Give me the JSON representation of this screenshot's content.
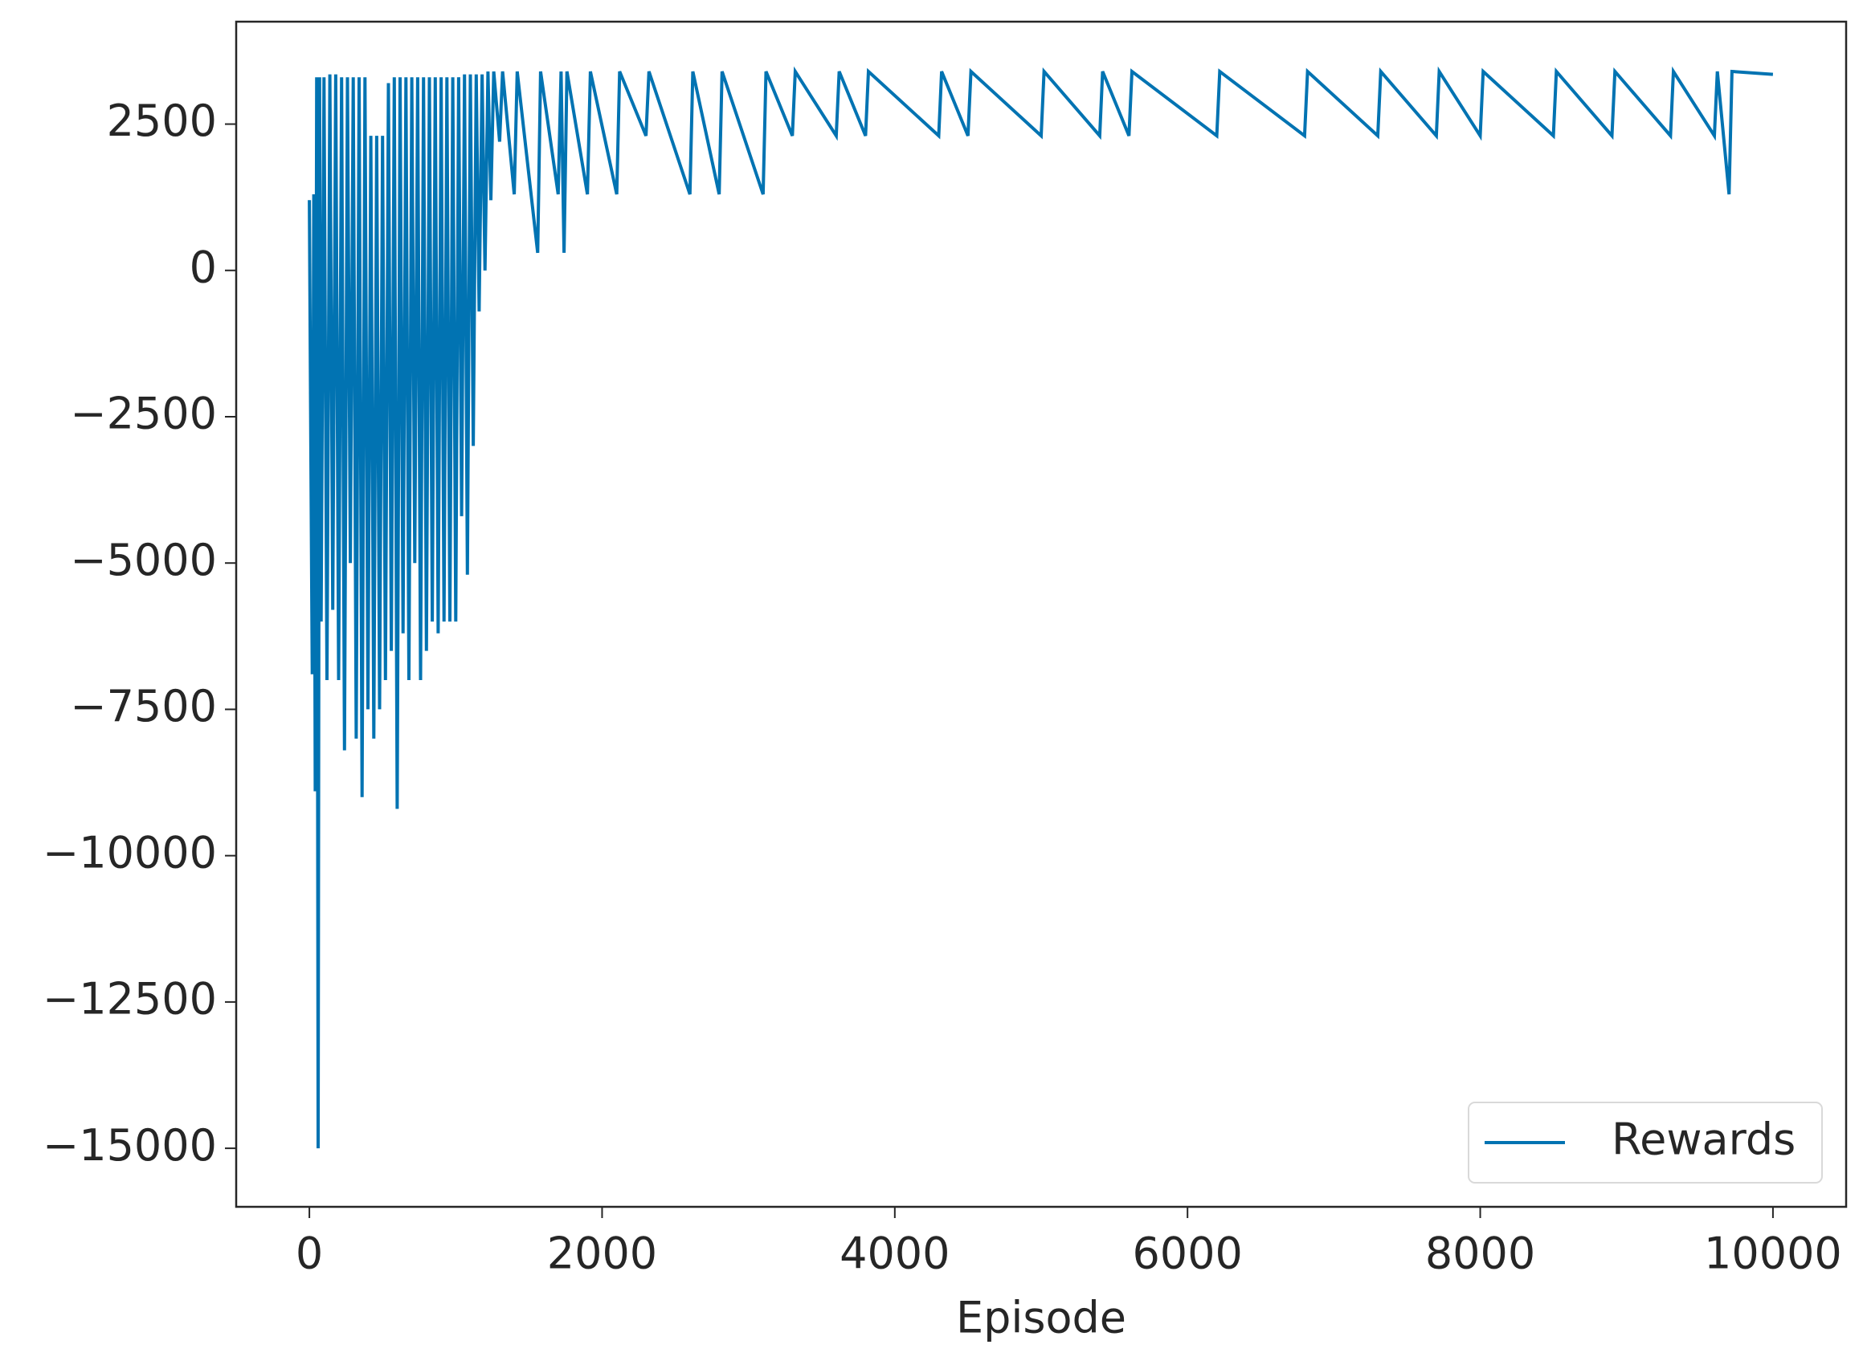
{
  "chart_data": {
    "type": "line",
    "xlabel": "Episode",
    "x": [
      0,
      10,
      20,
      30,
      40,
      50,
      60,
      70,
      80,
      100,
      120,
      140,
      160,
      180,
      200,
      220,
      240,
      260,
      280,
      300,
      320,
      340,
      360,
      380,
      400,
      420,
      440,
      460,
      480,
      500,
      520,
      540,
      560,
      580,
      600,
      620,
      640,
      660,
      680,
      700,
      720,
      740,
      760,
      780,
      800,
      820,
      840,
      860,
      880,
      900,
      920,
      940,
      960,
      980,
      1000,
      1020,
      1040,
      1060,
      1080,
      1100,
      1120,
      1140,
      1160,
      1180,
      1200,
      1220,
      1240,
      1260,
      1300,
      1320,
      1400,
      1420,
      1560,
      1580,
      1700,
      1720,
      1740,
      1760,
      1900,
      1920,
      2100,
      2120,
      2300,
      2320,
      2600,
      2620,
      2800,
      2820,
      3100,
      3120,
      3300,
      3320,
      3600,
      3620,
      3800,
      3820,
      4300,
      4320,
      4500,
      4520,
      5000,
      5020,
      5400,
      5420,
      5600,
      5620,
      6200,
      6220,
      6800,
      6820,
      7300,
      7320,
      7700,
      7720,
      8000,
      8020,
      8500,
      8520,
      8900,
      8920,
      9300,
      9320,
      9600,
      9620,
      9700,
      9720,
      10000
    ],
    "series": [
      {
        "name": "Rewards",
        "color": "#0173b2",
        "values": [
          1200,
          -3000,
          -6900,
          1300,
          -8900,
          3300,
          -15000,
          3300,
          -6000,
          3300,
          -7000,
          3350,
          -5800,
          3350,
          -7000,
          3300,
          -8200,
          3300,
          -5000,
          3300,
          -8000,
          3300,
          -9000,
          3300,
          -7500,
          2300,
          -8000,
          2300,
          -7500,
          2300,
          -7000,
          3200,
          -6500,
          3300,
          -9200,
          3300,
          -6200,
          3300,
          -7000,
          3300,
          -5000,
          3300,
          -7000,
          3300,
          -6500,
          3300,
          -6000,
          3300,
          -6200,
          3300,
          -6000,
          3300,
          -6000,
          3300,
          -6000,
          3300,
          -4200,
          3350,
          -5200,
          3350,
          -3000,
          3350,
          -700,
          3350,
          0,
          3400,
          1200,
          3400,
          2200,
          3400,
          1300,
          3400,
          300,
          3400,
          1300,
          3400,
          300,
          3400,
          1300,
          3400,
          1300,
          3400,
          2300,
          3400,
          1300,
          3400,
          1300,
          3400,
          1300,
          3400,
          2300,
          3400,
          2300,
          3400,
          2300,
          3400,
          2300,
          3400,
          2300,
          3400,
          2300,
          3400,
          2300,
          3400,
          2300,
          3400,
          2300,
          3400,
          2300,
          3400,
          2300,
          3400,
          2300,
          3400,
          2300,
          3400,
          2300,
          3400,
          2300,
          3400,
          2300,
          3400,
          2300,
          3400,
          1300,
          3400,
          3350
        ]
      }
    ],
    "xlim": [
      -500,
      10500
    ],
    "ylim": [
      -16000,
      4250
    ],
    "xticks": [
      0,
      2000,
      4000,
      6000,
      8000,
      10000
    ],
    "yticks": [
      {
        "value": -15000,
        "label": "−15000"
      },
      {
        "value": -12500,
        "label": "−12500"
      },
      {
        "value": -10000,
        "label": "−10000"
      },
      {
        "value": -7500,
        "label": "−7500"
      },
      {
        "value": -5000,
        "label": "−5000"
      },
      {
        "value": -2500,
        "label": "−2500"
      },
      0,
      2500
    ],
    "legend": "lower right"
  }
}
